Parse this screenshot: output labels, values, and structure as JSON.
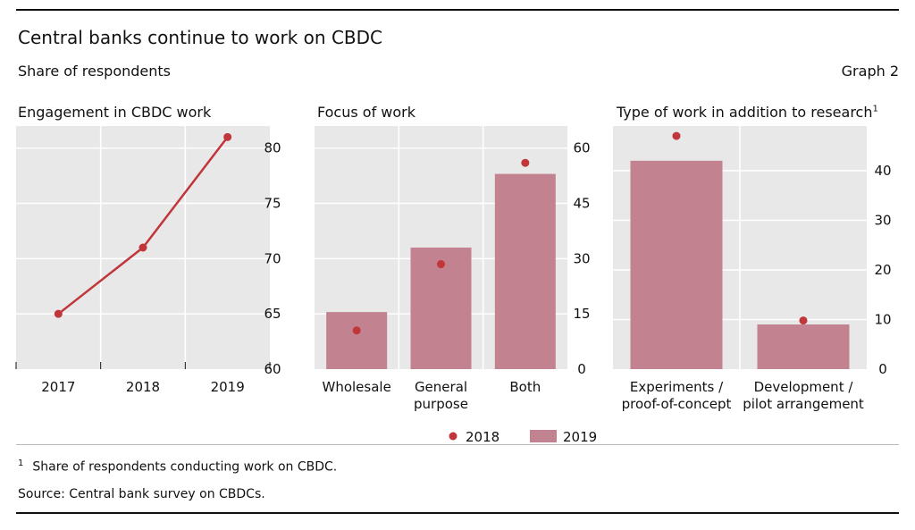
{
  "header": {
    "title": "Central banks continue to work on CBDC",
    "subtitle": "Share of respondents",
    "graph_number": "Graph 2"
  },
  "legend": {
    "dot_label": "2018",
    "bar_label": "2019"
  },
  "colors": {
    "line": "#c0363a",
    "dot": "#c0363a",
    "bar": "#c3828f",
    "panel_bg": "#e8e8e8",
    "grid": "#ffffff"
  },
  "footnotes": {
    "marker": "1",
    "note": "Share of respondents conducting work on CBDC.",
    "source": "Source: Central bank survey on CBDCs."
  },
  "chart_data": [
    {
      "type": "line",
      "title": "Engagement in CBDC work",
      "categories": [
        "2017",
        "2018",
        "2019"
      ],
      "series": [
        {
          "values": [
            65,
            71,
            81
          ]
        }
      ],
      "ylim": [
        60,
        82
      ],
      "yticks": [
        "60",
        "65",
        "70",
        "75",
        "80"
      ],
      "grid": true
    },
    {
      "type": "bar",
      "title": "Focus of work",
      "categories": [
        [
          "Wholesale"
        ],
        [
          "General",
          "purpose"
        ],
        [
          "Both"
        ]
      ],
      "series": [
        {
          "name": "2019",
          "kind": "bar",
          "values": [
            15.5,
            33,
            53
          ]
        },
        {
          "name": "2018",
          "kind": "dot",
          "values": [
            10.5,
            28.5,
            56
          ]
        }
      ],
      "ylim": [
        0,
        66
      ],
      "yticks": [
        "0",
        "15",
        "30",
        "45",
        "60"
      ],
      "grid": true
    },
    {
      "type": "bar",
      "title": "Type of work in addition to research",
      "title_footnote": "1",
      "categories": [
        [
          "Experiments /",
          "proof-of-concept"
        ],
        [
          "Development /",
          "pilot arrangement"
        ]
      ],
      "series": [
        {
          "name": "2019",
          "kind": "bar",
          "values": [
            42,
            9
          ]
        },
        {
          "name": "2018",
          "kind": "dot",
          "values": [
            47,
            9.8
          ]
        }
      ],
      "ylim": [
        0,
        49
      ],
      "yticks": [
        "0",
        "10",
        "20",
        "30",
        "40"
      ],
      "grid": true
    }
  ]
}
